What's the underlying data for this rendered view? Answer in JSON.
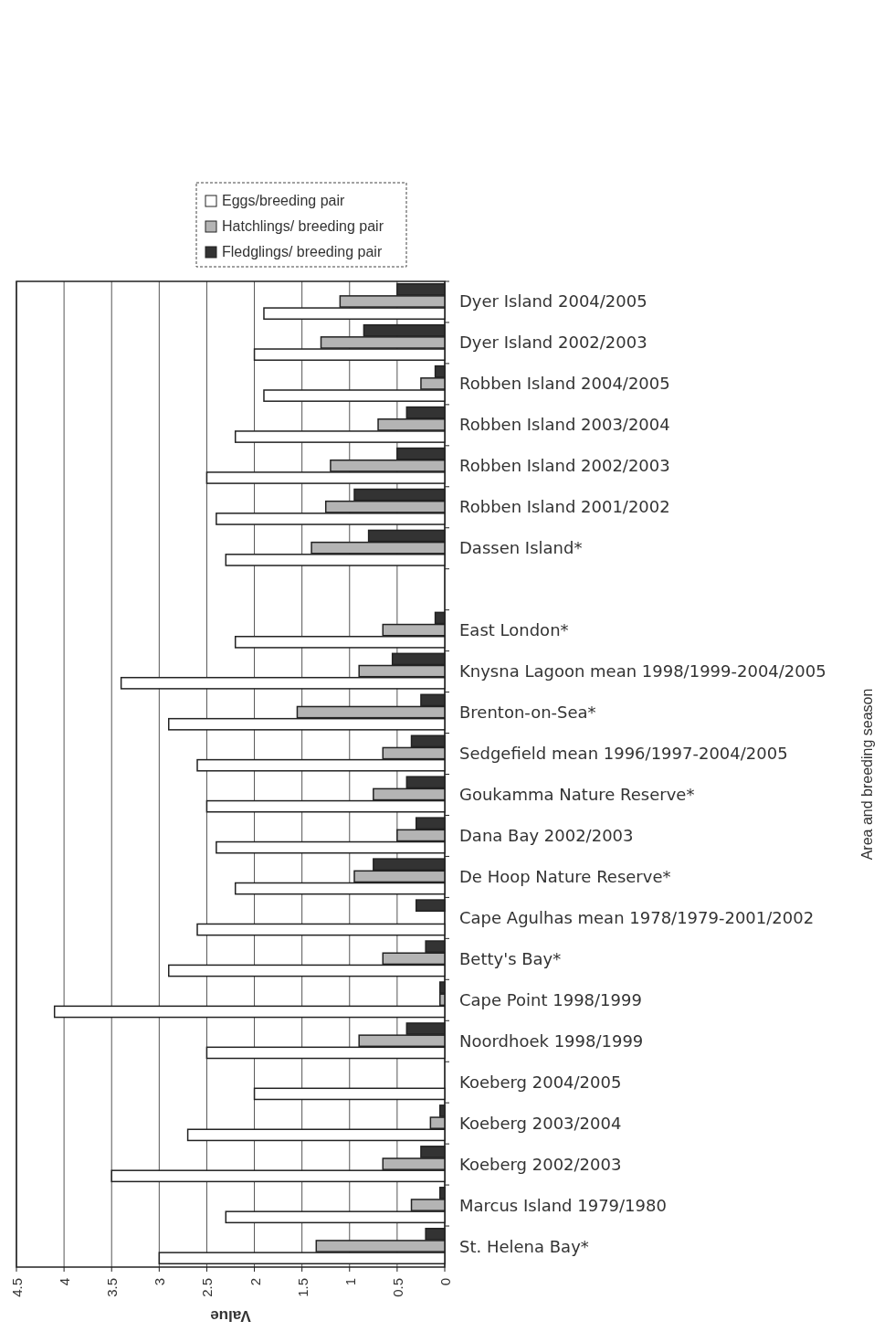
{
  "chart_data": {
    "type": "bar",
    "orientation": "horizontal",
    "xlabel": "Value",
    "ylabel": "Area and breeding season",
    "categories": [
      "Dyer Island 2004/2005",
      "Dyer Island 2002/2003",
      "Robben Island 2004/2005",
      "Robben Island 2003/2004",
      "Robben Island 2002/2003",
      "Robben Island 2001/2002",
      "Dassen Island*",
      null,
      "East London*",
      "Knysna Lagoon mean 1998/1999-2004/2005",
      "Brenton-on-Sea*",
      "Sedgefield mean 1996/1997-2004/2005",
      "Goukamma Nature Reserve*",
      "Dana Bay 2002/2003",
      "De Hoop Nature Reserve*",
      "Cape Agulhas mean 1978/1979-2001/2002",
      "Betty's Bay*",
      "Cape Point 1998/1999",
      "Noordhoek 1998/1999",
      "Koeberg 2004/2005",
      "Koeberg 2003/2004",
      "Koeberg 2002/2003",
      "Marcus Island 1979/1980",
      "St. Helena Bay*"
    ],
    "series": [
      {
        "name": "Eggs/breeding pair",
        "color": "#ffffff",
        "values": [
          1.9,
          2.0,
          1.9,
          2.2,
          2.5,
          2.4,
          2.3,
          null,
          2.2,
          3.4,
          2.9,
          2.6,
          2.5,
          2.4,
          2.2,
          2.6,
          2.9,
          4.1,
          2.5,
          2.0,
          2.7,
          3.5,
          2.3,
          3.0
        ]
      },
      {
        "name": "Hatchlings/ breeding pair",
        "color": "#b4b4b4",
        "values": [
          1.1,
          1.3,
          0.25,
          0.7,
          1.2,
          1.25,
          1.4,
          null,
          0.65,
          0.9,
          1.55,
          0.65,
          0.75,
          0.5,
          0.95,
          null,
          0.65,
          0.05,
          0.9,
          null,
          0.15,
          0.65,
          0.35,
          1.35
        ]
      },
      {
        "name": "Fledglings/ breeding pair",
        "color": "#333333",
        "values": [
          0.5,
          0.85,
          0.1,
          0.4,
          0.5,
          0.95,
          0.8,
          null,
          0.1,
          0.55,
          0.25,
          0.35,
          0.4,
          0.3,
          0.75,
          0.3,
          0.2,
          0.05,
          0.4,
          null,
          0.05,
          0.25,
          0.05,
          0.2
        ]
      }
    ],
    "xlim": [
      4.5,
      0
    ],
    "xticks": [
      4.5,
      4,
      3.5,
      3,
      2.5,
      2,
      1.5,
      1,
      0.5,
      0
    ],
    "grid": "x",
    "legend": "top"
  }
}
